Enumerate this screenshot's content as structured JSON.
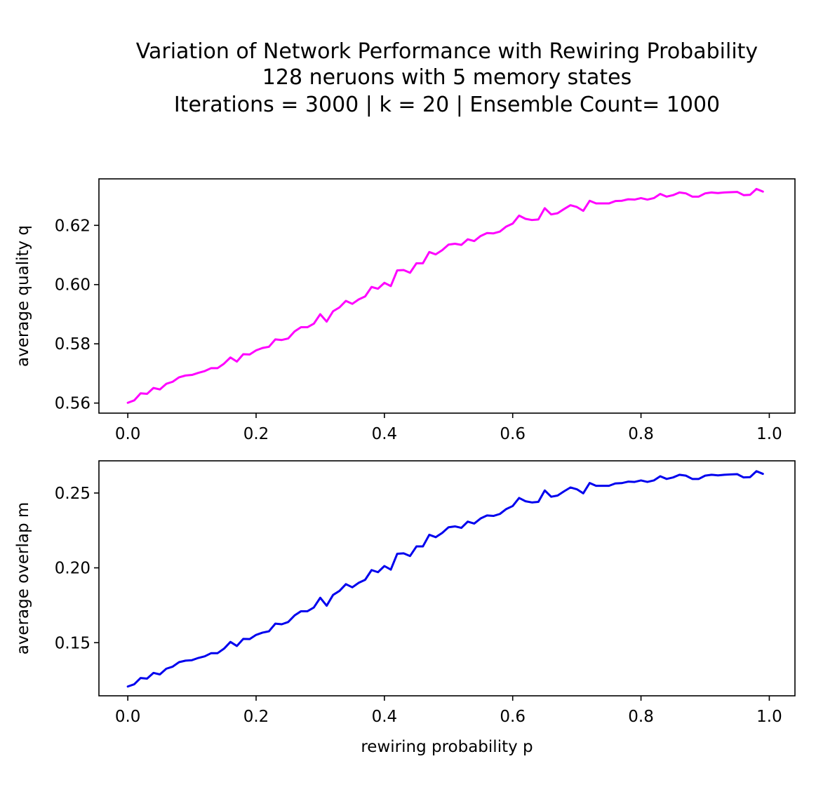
{
  "title_lines": [
    "Variation of Network Performance with Rewiring Probability",
    "128 neruons with 5 memory states",
    "Iterations = 3000 |  k = 20 | Ensemble Count= 1000"
  ],
  "chart_data": [
    {
      "type": "line",
      "xlabel": "",
      "ylabel": "average quality q",
      "xlim": [
        -0.045,
        1.04
      ],
      "ylim": [
        0.5566,
        0.6357
      ],
      "xticks": [
        0.0,
        0.2,
        0.4,
        0.6,
        0.8,
        1.0
      ],
      "xtick_labels": [
        "0.0",
        "0.2",
        "0.4",
        "0.6",
        "0.8",
        "1.0"
      ],
      "yticks": [
        0.56,
        0.58,
        0.6,
        0.62
      ],
      "ytick_labels": [
        "0.56",
        "0.58",
        "0.60",
        "0.62"
      ],
      "grid": false,
      "series": [
        {
          "color": "#ff00ff",
          "x": [
            0.0,
            0.01,
            0.02,
            0.03,
            0.04,
            0.05,
            0.06,
            0.07,
            0.08,
            0.09,
            0.1,
            0.11,
            0.12,
            0.13,
            0.14,
            0.15,
            0.16,
            0.17,
            0.18,
            0.19,
            0.2,
            0.21,
            0.22,
            0.23,
            0.24,
            0.25,
            0.26,
            0.27,
            0.28,
            0.29,
            0.3,
            0.31,
            0.32,
            0.33,
            0.34,
            0.35,
            0.36,
            0.37,
            0.38,
            0.39,
            0.4,
            0.41,
            0.42,
            0.43,
            0.44,
            0.45,
            0.46,
            0.47,
            0.48,
            0.49,
            0.5,
            0.51,
            0.52,
            0.53,
            0.54,
            0.55,
            0.56,
            0.57,
            0.58,
            0.59,
            0.6,
            0.61,
            0.62,
            0.63,
            0.64,
            0.65,
            0.66,
            0.67,
            0.68,
            0.69,
            0.7,
            0.71,
            0.72,
            0.73,
            0.74,
            0.75,
            0.76,
            0.77,
            0.78,
            0.79,
            0.8,
            0.81,
            0.82,
            0.83,
            0.84,
            0.85,
            0.86,
            0.87,
            0.88,
            0.89,
            0.9,
            0.91,
            0.92,
            0.93,
            0.94,
            0.95,
            0.96,
            0.97,
            0.98,
            0.99
          ],
          "y": [
            0.5601,
            0.5609,
            0.5633,
            0.5631,
            0.5651,
            0.5646,
            0.5665,
            0.5672,
            0.5687,
            0.5693,
            0.5695,
            0.5702,
            0.5708,
            0.5718,
            0.5718,
            0.5733,
            0.5754,
            0.574,
            0.5765,
            0.5764,
            0.5778,
            0.5786,
            0.579,
            0.5815,
            0.5813,
            0.5818,
            0.5842,
            0.5856,
            0.5856,
            0.5868,
            0.59,
            0.5875,
            0.591,
            0.5923,
            0.5945,
            0.5935,
            0.595,
            0.596,
            0.5992,
            0.5986,
            0.6006,
            0.5995,
            0.6048,
            0.6049,
            0.604,
            0.6072,
            0.6072,
            0.611,
            0.6102,
            0.6116,
            0.6135,
            0.6138,
            0.6134,
            0.6153,
            0.6147,
            0.6164,
            0.6174,
            0.6173,
            0.6179,
            0.6196,
            0.6206,
            0.6233,
            0.6222,
            0.6218,
            0.622,
            0.6258,
            0.6237,
            0.6241,
            0.6255,
            0.6268,
            0.6262,
            0.6249,
            0.6283,
            0.6274,
            0.6274,
            0.6274,
            0.6282,
            0.6283,
            0.6288,
            0.6287,
            0.6292,
            0.6287,
            0.6292,
            0.6306,
            0.6297,
            0.6302,
            0.6311,
            0.6308,
            0.6297,
            0.6297,
            0.6308,
            0.6311,
            0.6309,
            0.6311,
            0.6312,
            0.6313,
            0.6302,
            0.6303,
            0.6323,
            0.6314
          ]
        }
      ]
    },
    {
      "type": "line",
      "xlabel": "rewiring probability p",
      "ylabel": "average overlap m",
      "xlim": [
        -0.045,
        1.04
      ],
      "ylim": [
        0.1145,
        0.2715
      ],
      "xticks": [
        0.0,
        0.2,
        0.4,
        0.6,
        0.8,
        1.0
      ],
      "xtick_labels": [
        "0.0",
        "0.2",
        "0.4",
        "0.6",
        "0.8",
        "1.0"
      ],
      "yticks": [
        0.15,
        0.2,
        0.25
      ],
      "ytick_labels": [
        "0.15",
        "0.20",
        "0.25"
      ],
      "grid": false,
      "series": [
        {
          "color": "#0000ee",
          "x": [
            0.0,
            0.01,
            0.02,
            0.03,
            0.04,
            0.05,
            0.06,
            0.07,
            0.08,
            0.09,
            0.1,
            0.11,
            0.12,
            0.13,
            0.14,
            0.15,
            0.16,
            0.17,
            0.18,
            0.19,
            0.2,
            0.21,
            0.22,
            0.23,
            0.24,
            0.25,
            0.26,
            0.27,
            0.28,
            0.29,
            0.3,
            0.31,
            0.32,
            0.33,
            0.34,
            0.35,
            0.36,
            0.37,
            0.38,
            0.39,
            0.4,
            0.41,
            0.42,
            0.43,
            0.44,
            0.45,
            0.46,
            0.47,
            0.48,
            0.49,
            0.5,
            0.51,
            0.52,
            0.53,
            0.54,
            0.55,
            0.56,
            0.57,
            0.58,
            0.59,
            0.6,
            0.61,
            0.62,
            0.63,
            0.64,
            0.65,
            0.66,
            0.67,
            0.68,
            0.69,
            0.7,
            0.71,
            0.72,
            0.73,
            0.74,
            0.75,
            0.76,
            0.77,
            0.78,
            0.79,
            0.8,
            0.81,
            0.82,
            0.83,
            0.84,
            0.85,
            0.86,
            0.87,
            0.88,
            0.89,
            0.9,
            0.91,
            0.92,
            0.93,
            0.94,
            0.95,
            0.96,
            0.97,
            0.98,
            0.99
          ],
          "y": [
            0.1207,
            0.1222,
            0.1264,
            0.126,
            0.1298,
            0.1288,
            0.1326,
            0.134,
            0.137,
            0.138,
            0.1383,
            0.1398,
            0.1409,
            0.143,
            0.143,
            0.146,
            0.1505,
            0.1478,
            0.1525,
            0.1524,
            0.1552,
            0.1567,
            0.1576,
            0.1627,
            0.1623,
            0.1638,
            0.1682,
            0.171,
            0.171,
            0.1735,
            0.18,
            0.1747,
            0.1819,
            0.1846,
            0.1891,
            0.187,
            0.19,
            0.192,
            0.1985,
            0.1971,
            0.2012,
            0.1988,
            0.2094,
            0.2097,
            0.2079,
            0.2143,
            0.2143,
            0.2221,
            0.2205,
            0.2233,
            0.2271,
            0.2277,
            0.2267,
            0.2309,
            0.2296,
            0.233,
            0.235,
            0.2347,
            0.236,
            0.2393,
            0.2413,
            0.2467,
            0.2445,
            0.2437,
            0.2441,
            0.2517,
            0.2475,
            0.2483,
            0.2511,
            0.2537,
            0.2525,
            0.2498,
            0.2567,
            0.2548,
            0.2548,
            0.2548,
            0.2564,
            0.2566,
            0.2576,
            0.2574,
            0.2584,
            0.2574,
            0.2584,
            0.2612,
            0.2594,
            0.2604,
            0.2622,
            0.2616,
            0.2594,
            0.2594,
            0.2616,
            0.2622,
            0.2618,
            0.2622,
            0.2624,
            0.2626,
            0.2604,
            0.2606,
            0.2646,
            0.2628
          ]
        }
      ]
    }
  ]
}
